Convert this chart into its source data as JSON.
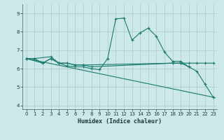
{
  "title": "",
  "xlabel": "Humidex (Indice chaleur)",
  "bg_color": "#cce8e8",
  "grid_color": "#aacccc",
  "line_color": "#1a7a6e",
  "xlim": [
    -0.5,
    23.5
  ],
  "ylim": [
    3.8,
    9.5
  ],
  "yticks": [
    4,
    5,
    6,
    7,
    8,
    9
  ],
  "xticks": [
    0,
    1,
    2,
    3,
    4,
    5,
    6,
    7,
    8,
    9,
    10,
    11,
    12,
    13,
    14,
    15,
    16,
    17,
    18,
    19,
    20,
    21,
    22,
    23
  ],
  "lines": [
    {
      "x": [
        0,
        1,
        3,
        4,
        5,
        6,
        7,
        8,
        9,
        10,
        11,
        12,
        13,
        14,
        15,
        16,
        17,
        18,
        19,
        20,
        21,
        22,
        23
      ],
      "y": [
        6.55,
        6.55,
        6.65,
        6.3,
        6.15,
        6.1,
        6.1,
        6.0,
        5.95,
        6.55,
        8.7,
        8.75,
        7.55,
        7.95,
        8.2,
        7.75,
        6.9,
        6.4,
        6.4,
        6.1,
        5.85,
        5.15,
        4.45
      ]
    },
    {
      "x": [
        0,
        1,
        2,
        3,
        4,
        5,
        6,
        7,
        18,
        19,
        20,
        21,
        22,
        23
      ],
      "y": [
        6.55,
        6.55,
        6.3,
        6.55,
        6.3,
        6.3,
        6.2,
        6.2,
        6.3,
        6.3,
        6.3,
        6.3,
        6.3,
        6.3
      ]
    },
    {
      "x": [
        0,
        2,
        3,
        4,
        5,
        6,
        7,
        8,
        18,
        19,
        20
      ],
      "y": [
        6.55,
        6.3,
        6.55,
        6.3,
        6.3,
        6.2,
        6.2,
        6.1,
        6.3,
        6.3,
        6.1
      ]
    },
    {
      "x": [
        0,
        23
      ],
      "y": [
        6.55,
        4.45
      ]
    }
  ]
}
